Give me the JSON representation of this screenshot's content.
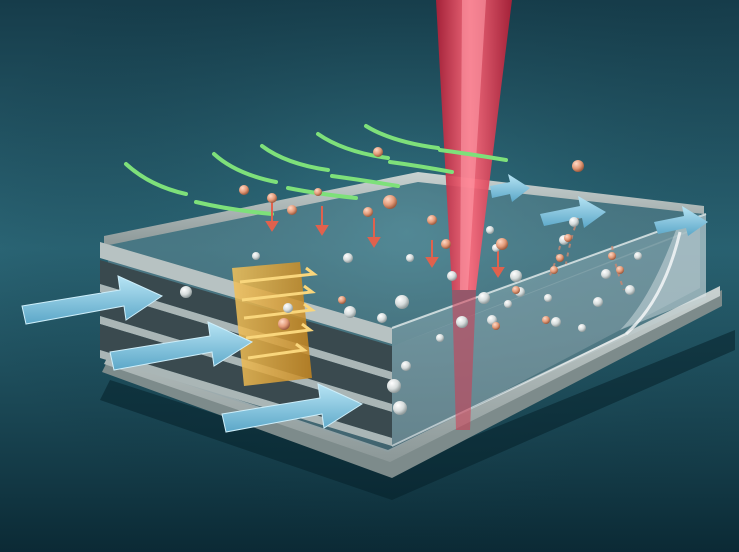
{
  "scene": {
    "background_top": "#153f4d",
    "background_mid": "#2c6a7b",
    "background_bottom": "#0c2e3a",
    "chamber_frame": "#9aa7a7",
    "chamber_glass": "#b8c9cf",
    "laser_color": "#e0394f",
    "flow_arrow_color": "#8ec9e6",
    "gas_arrow_color": "#7ee07a",
    "gradient_plate_color": "#e0a531",
    "particle_silver": "#e6eceb",
    "particle_copper": "#e39a78",
    "trail_color": "#c98872"
  },
  "icons": {
    "flow_arrow": "arrow-right-icon",
    "gas_arrow": "curved-arrow-icon",
    "deposition_arrow": "arrow-down-icon",
    "laser": "laser-beam-icon",
    "particle": "sphere-icon"
  }
}
